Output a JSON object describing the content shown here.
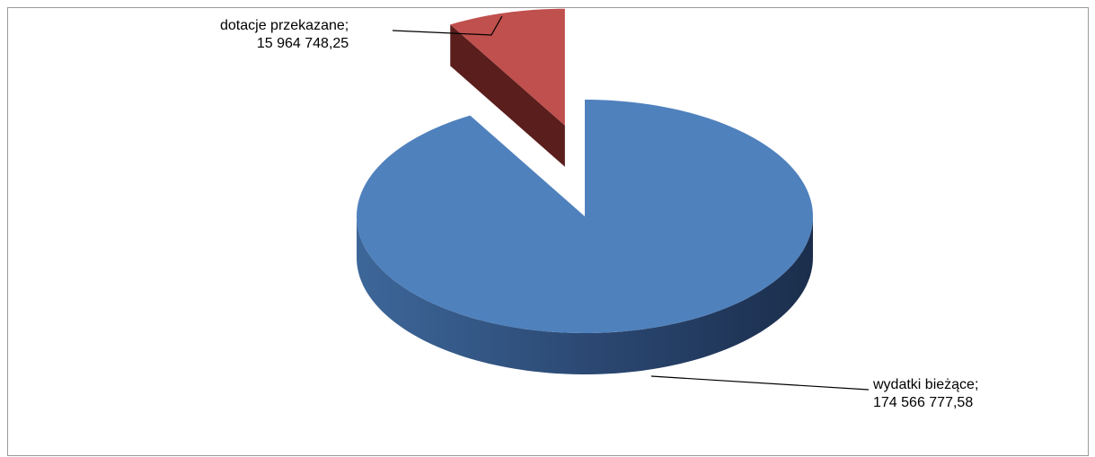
{
  "chart_data": {
    "type": "pie",
    "title": "",
    "three_d": true,
    "exploded_slice": "dotacje przekazane",
    "slices": [
      {
        "name": "wydatki bieżące",
        "value": 174566777.58,
        "label_name": "wydatki bieżące;",
        "label_value": "174 566 777,58",
        "color": "#4f81bd",
        "side_color": "#2e4a72"
      },
      {
        "name": "dotacje przekazane",
        "value": 15964748.25,
        "label_name": "dotacje przekazane;",
        "label_value": "15 964 748,25",
        "color": "#c0504d",
        "side_color": "#5a1e1d"
      }
    ]
  }
}
